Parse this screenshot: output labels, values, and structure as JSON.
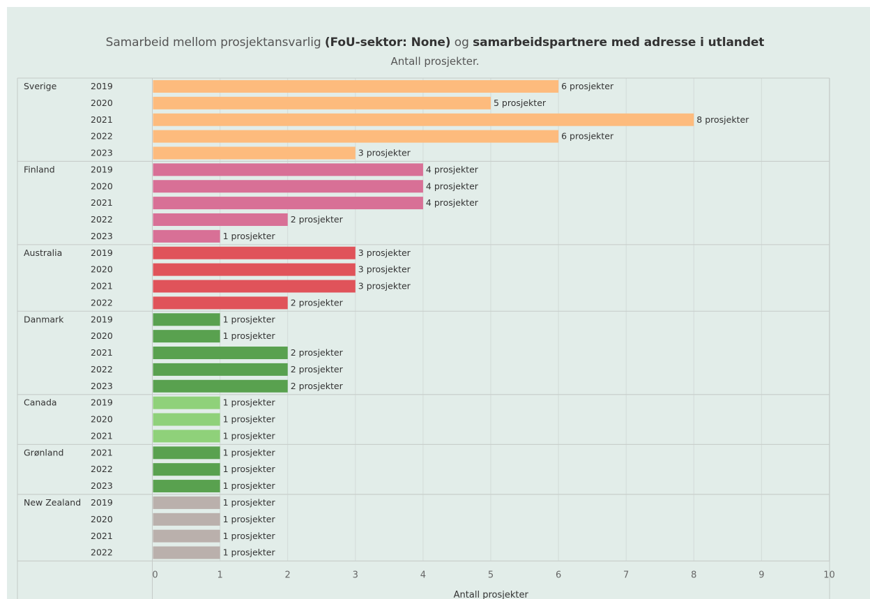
{
  "header": {
    "title_part1": "Samarbeid mellom prosjektansvarlig ",
    "title_part2": "(FoU-sektor: None)",
    "title_part3": " og ",
    "title_part4": "samarbeidspartnere med adresse i utlandet",
    "subtitle": "Antall prosjekter."
  },
  "chart_data": {
    "type": "bar",
    "orientation": "horizontal",
    "xlabel": "Antall prosjekter",
    "xlim": [
      0,
      10
    ],
    "xticks": [
      0,
      1,
      2,
      3,
      4,
      5,
      6,
      7,
      8,
      9,
      10
    ],
    "value_label_suffix": " prosjekter",
    "groups": [
      {
        "country": "Sverige",
        "color": "#fdbb7d",
        "bars": [
          {
            "year": "2019",
            "value": 6,
            "label": "6 prosjekter"
          },
          {
            "year": "2020",
            "value": 5,
            "label": "5 prosjekter"
          },
          {
            "year": "2021",
            "value": 8,
            "label": "8 prosjekter"
          },
          {
            "year": "2022",
            "value": 6,
            "label": "6 prosjekter"
          },
          {
            "year": "2023",
            "value": 3,
            "label": "3 prosjekter"
          }
        ]
      },
      {
        "country": "Finland",
        "color": "#d87096",
        "bars": [
          {
            "year": "2019",
            "value": 4,
            "label": "4 prosjekter"
          },
          {
            "year": "2020",
            "value": 4,
            "label": "4 prosjekter"
          },
          {
            "year": "2021",
            "value": 4,
            "label": "4 prosjekter"
          },
          {
            "year": "2022",
            "value": 2,
            "label": "2 prosjekter"
          },
          {
            "year": "2023",
            "value": 1,
            "label": "1 prosjekter"
          }
        ]
      },
      {
        "country": "Australia",
        "color": "#e0535a",
        "bars": [
          {
            "year": "2019",
            "value": 3,
            "label": "3 prosjekter"
          },
          {
            "year": "2020",
            "value": 3,
            "label": "3 prosjekter"
          },
          {
            "year": "2021",
            "value": 3,
            "label": "3 prosjekter"
          },
          {
            "year": "2022",
            "value": 2,
            "label": "2 prosjekter"
          }
        ]
      },
      {
        "country": "Danmark",
        "color": "#59a14f",
        "bars": [
          {
            "year": "2019",
            "value": 1,
            "label": "1 prosjekter"
          },
          {
            "year": "2020",
            "value": 1,
            "label": "1 prosjekter"
          },
          {
            "year": "2021",
            "value": 2,
            "label": "2 prosjekter"
          },
          {
            "year": "2022",
            "value": 2,
            "label": "2 prosjekter"
          },
          {
            "year": "2023",
            "value": 2,
            "label": "2 prosjekter"
          }
        ]
      },
      {
        "country": "Canada",
        "color": "#8fd17a",
        "bars": [
          {
            "year": "2019",
            "value": 1,
            "label": "1 prosjekter"
          },
          {
            "year": "2020",
            "value": 1,
            "label": "1 prosjekter"
          },
          {
            "year": "2021",
            "value": 1,
            "label": "1 prosjekter"
          }
        ]
      },
      {
        "country": "Grønland",
        "color": "#59a14f",
        "bars": [
          {
            "year": "2021",
            "value": 1,
            "label": "1 prosjekter"
          },
          {
            "year": "2022",
            "value": 1,
            "label": "1 prosjekter"
          },
          {
            "year": "2023",
            "value": 1,
            "label": "1 prosjekter"
          }
        ]
      },
      {
        "country": "New Zealand",
        "color": "#bab0ac",
        "bars": [
          {
            "year": "2019",
            "value": 1,
            "label": "1 prosjekter"
          },
          {
            "year": "2020",
            "value": 1,
            "label": "1 prosjekter"
          },
          {
            "year": "2021",
            "value": 1,
            "label": "1 prosjekter"
          },
          {
            "year": "2022",
            "value": 1,
            "label": "1 prosjekter"
          }
        ]
      }
    ]
  }
}
